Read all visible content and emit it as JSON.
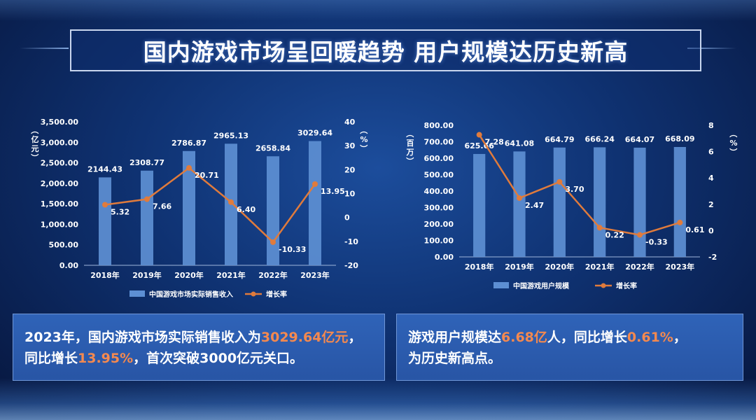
{
  "title": "国内游戏市场呈回暖趋势 用户规模达历史新高",
  "chart_data": [
    {
      "type": "bar",
      "categories": [
        "2018年",
        "2019年",
        "2020年",
        "2021年",
        "2022年",
        "2023年"
      ],
      "series": [
        {
          "name": "中国游戏市场实际销售收入",
          "type": "bar",
          "axis": "left",
          "values": [
            2144.43,
            2308.77,
            2786.87,
            2965.13,
            2658.84,
            3029.64
          ],
          "value_labels": [
            "2144.43",
            "2308.77",
            "2786.87",
            "2965.13",
            "2658.84",
            "3029.64"
          ]
        },
        {
          "name": "增长率",
          "type": "line",
          "axis": "right",
          "values": [
            5.32,
            7.66,
            20.71,
            6.4,
            -10.33,
            13.95
          ],
          "value_labels": [
            "5.32",
            "7.66",
            "20.71",
            "6.40",
            "-10.33",
            "13.95"
          ]
        }
      ],
      "ylabel": "（亿元）",
      "y2label": "（%）",
      "ylim": [
        0,
        3500
      ],
      "yticks": [
        0,
        500,
        1000,
        1500,
        2000,
        2500,
        3000,
        3500
      ],
      "ytick_labels": [
        "0.00",
        "500.00",
        "1,000.00",
        "1,500.00",
        "2,000.00",
        "2,500.00",
        "3,000.00",
        "3,500.00"
      ],
      "y2lim": [
        -20,
        40
      ],
      "y2ticks": [
        -20,
        -10,
        0,
        10,
        20,
        30,
        40
      ],
      "y2tick_labels": [
        "-20",
        "-10",
        "0",
        "10",
        "20",
        "30",
        "40"
      ],
      "legend_position": "bottom",
      "grid": false
    },
    {
      "type": "bar",
      "categories": [
        "2018年",
        "2019年",
        "2020年",
        "2021年",
        "2022年",
        "2023年"
      ],
      "series": [
        {
          "name": "中国游戏用户规模",
          "type": "bar",
          "axis": "left",
          "values": [
            625.66,
            641.08,
            664.79,
            666.24,
            664.07,
            668.09
          ],
          "value_labels": [
            "625.66",
            "641.08",
            "664.79",
            "666.24",
            "664.07",
            "668.09"
          ]
        },
        {
          "name": "增长率",
          "type": "line",
          "axis": "right",
          "values": [
            7.28,
            2.47,
            3.7,
            0.22,
            -0.33,
            0.61
          ],
          "value_labels": [
            "7.28",
            "2.47",
            "3.70",
            "0.22",
            "-0.33",
            "0.61"
          ]
        }
      ],
      "ylabel": "（百万）",
      "y2label": "（%）",
      "ylim": [
        0,
        800
      ],
      "yticks": [
        0,
        100,
        200,
        300,
        400,
        500,
        600,
        700,
        800
      ],
      "ytick_labels": [
        "0.00",
        "100.00",
        "200.00",
        "300.00",
        "400.00",
        "500.00",
        "600.00",
        "700.00",
        "800.00"
      ],
      "y2lim": [
        -2,
        8
      ],
      "y2ticks": [
        -2,
        0,
        2,
        4,
        6,
        8
      ],
      "y2tick_labels": [
        "-2",
        "0",
        "2",
        "4",
        "6",
        "8"
      ],
      "legend_position": "bottom",
      "grid": false
    }
  ],
  "summary_left": {
    "t1": "2023年，国内游戏市场实际销售收入为",
    "h1": "3029.64亿元",
    "t2": "，",
    "t3": "同比增长",
    "h2": "13.95%",
    "t4": "，首次突破3000亿元关口。"
  },
  "summary_right": {
    "t1": "游戏用户规模达",
    "h1": "6.68亿",
    "t2": "人，同比增长",
    "h2": "0.61%",
    "t3": "，",
    "t4": "为历史新高点。"
  },
  "colors": {
    "bar": "#5d8fd3",
    "line": "#e07b3c",
    "highlight": "#f4894f"
  }
}
